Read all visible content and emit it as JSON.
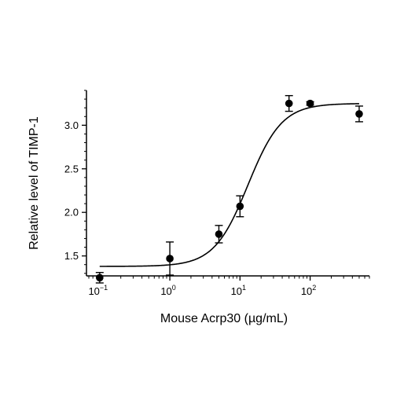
{
  "chart_data": {
    "type": "scatter",
    "xlabel": "Mouse Acrp30 (µg/mL)",
    "ylabel": "Relative level of TIMP-1",
    "x_scale": "log",
    "xlim": [
      0.07,
      700
    ],
    "ylim": [
      1.28,
      3.4
    ],
    "x_ticks": [
      {
        "value": 0.1,
        "base": "10",
        "exp": "−1"
      },
      {
        "value": 1,
        "base": "10",
        "exp": "0"
      },
      {
        "value": 10,
        "base": "10",
        "exp": "1"
      },
      {
        "value": 100,
        "base": "10",
        "exp": "2"
      }
    ],
    "y_ticks": [
      {
        "value": 1.5,
        "label": "1.5"
      },
      {
        "value": 2.0,
        "label": "2.0"
      },
      {
        "value": 2.5,
        "label": "2.5"
      },
      {
        "value": 3.0,
        "label": "3.0"
      }
    ],
    "points": [
      {
        "x": 0.1,
        "y": 1.25,
        "err": 0.06
      },
      {
        "x": 1,
        "y": 1.47,
        "err": 0.19
      },
      {
        "x": 5,
        "y": 1.75,
        "err": 0.1
      },
      {
        "x": 10,
        "y": 2.07,
        "err": 0.12
      },
      {
        "x": 50,
        "y": 3.25,
        "err": 0.09
      },
      {
        "x": 100,
        "y": 3.25,
        "err": 0.02
      },
      {
        "x": 500,
        "y": 3.13,
        "err": 0.09
      }
    ],
    "fit_curve": {
      "model": "4PL",
      "bottom": 1.38,
      "top": 3.25,
      "ec50": 13,
      "hill": 1.8,
      "x_range": [
        0.1,
        500
      ]
    },
    "grid": false,
    "legend": "none"
  }
}
